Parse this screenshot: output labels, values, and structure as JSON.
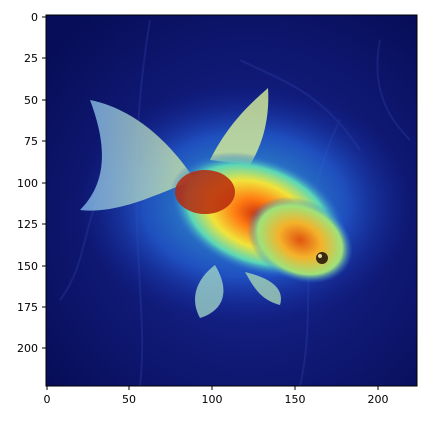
{
  "image": {
    "description_icon": "goldfish-heatmap-overlay",
    "colors": {
      "background": "#0b1470",
      "background_dark": "#050a4a",
      "heat_low": "#1f4fd6",
      "heat_mid": "#36d2c4",
      "heat_warm": "#f2e33a",
      "heat_hot": "#ff7a12",
      "heat_peak": "#d83a10"
    }
  },
  "axes": {
    "x_ticks": [
      "0",
      "50",
      "100",
      "150",
      "200"
    ],
    "y_ticks": [
      "0",
      "25",
      "50",
      "75",
      "100",
      "125",
      "150",
      "175",
      "200"
    ],
    "x_range": [
      0,
      224
    ],
    "y_range": [
      0,
      224
    ]
  }
}
